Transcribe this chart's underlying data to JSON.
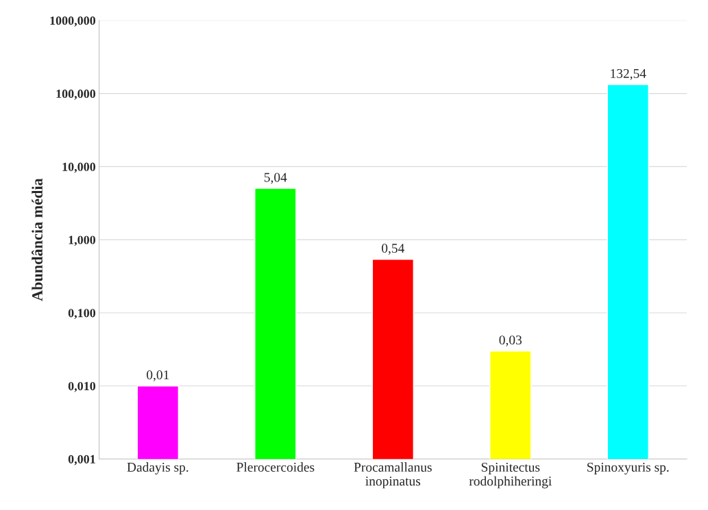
{
  "chart_data": {
    "type": "bar",
    "ylabel": "Abundância média",
    "categories": [
      "Dadayis sp.",
      "Plerocercoides",
      "Procamallanus\ninopinatus",
      "Spinitectus\nrodolphiheringi",
      "Spinoxyuris sp."
    ],
    "values": [
      0.01,
      5.04,
      0.54,
      0.03,
      132.54
    ],
    "colors": [
      "#ff00ff",
      "#00ff00",
      "#ff0000",
      "#ffff00",
      "#00ffff"
    ],
    "value_labels": [
      "0,01",
      "5,04",
      "0,54",
      "0,03",
      "132,54"
    ],
    "log": true,
    "ylim": [
      0.001,
      1000
    ],
    "yticks": [
      {
        "value": 0.001,
        "label": "0,001"
      },
      {
        "value": 0.01,
        "label": "0,010"
      },
      {
        "value": 0.1,
        "label": "0,100"
      },
      {
        "value": 1,
        "label": "1,000"
      },
      {
        "value": 10,
        "label": "10,000"
      },
      {
        "value": 100,
        "label": "100,000"
      },
      {
        "value": 1000,
        "label": "1000,000"
      }
    ],
    "grid": "y",
    "legend": false
  }
}
